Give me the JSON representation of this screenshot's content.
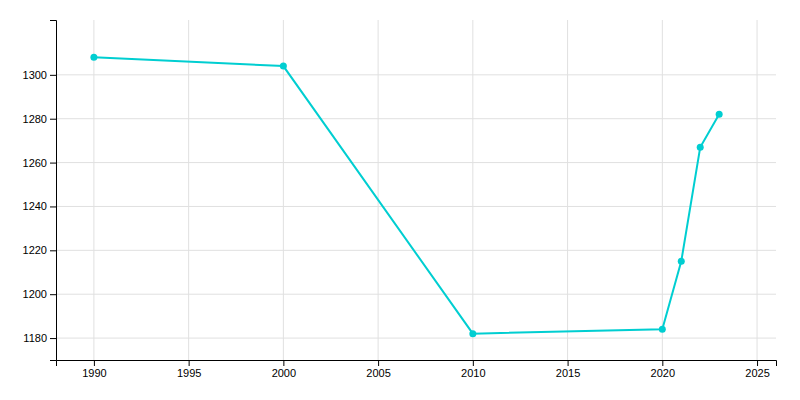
{
  "chart_data": {
    "type": "line",
    "x": [
      1990,
      2000,
      2010,
      2020,
      2021,
      2022,
      2023
    ],
    "values": [
      1308,
      1304,
      1182,
      1184,
      1215,
      1267,
      1282
    ],
    "color": "#00CED1",
    "marker": "circle",
    "xlim": [
      1988,
      2026
    ],
    "ylim": [
      1170,
      1325
    ],
    "xticks": [
      1990,
      1995,
      2000,
      2005,
      2010,
      2015,
      2020,
      2025
    ],
    "yticks": [
      1180,
      1200,
      1220,
      1240,
      1260,
      1280,
      1300
    ],
    "grid": true
  }
}
